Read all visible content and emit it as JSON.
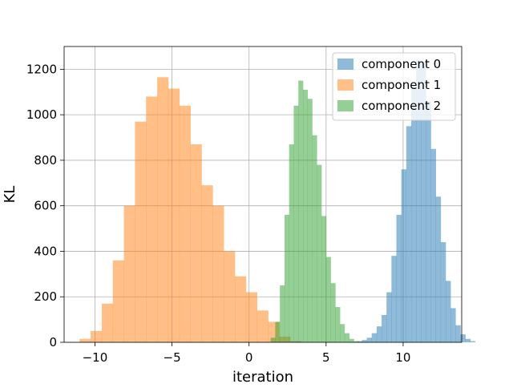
{
  "chart_data": {
    "type": "histogram",
    "xlabel": "iteration",
    "ylabel": "KL",
    "xlim": [
      -12.0,
      13.8
    ],
    "ylim": [
      0,
      1300
    ],
    "x_ticks": [
      -10,
      -5,
      0,
      5,
      10
    ],
    "x_tick_labels": [
      "−10",
      "−5",
      "0",
      "5",
      "10"
    ],
    "y_ticks": [
      0,
      200,
      400,
      600,
      800,
      1000,
      1200
    ],
    "y_tick_labels": [
      "0",
      "200",
      "400",
      "600",
      "800",
      "1000",
      "1200"
    ],
    "grid": true,
    "legend_position": "top-right",
    "series": [
      {
        "name": "component 0",
        "color": "#1f77b4",
        "opacity": 0.5,
        "bin_start": 7.0,
        "bin_width": 0.32,
        "counts": [
          5,
          10,
          20,
          40,
          70,
          120,
          220,
          380,
          560,
          760,
          950,
          1130,
          1240,
          1230,
          1060,
          850,
          640,
          440,
          270,
          150,
          75,
          35,
          15,
          5
        ]
      },
      {
        "name": "component 1",
        "color": "#ff7f0e",
        "opacity": 0.5,
        "bin_start": -11.0,
        "bin_width": 0.72,
        "counts": [
          15,
          50,
          170,
          360,
          600,
          970,
          1080,
          1165,
          1115,
          1040,
          870,
          690,
          600,
          400,
          290,
          220,
          140,
          90,
          25,
          5
        ]
      },
      {
        "name": "component 2",
        "color": "#2ca02c",
        "opacity": 0.5,
        "bin_start": 1.4,
        "bin_width": 0.3,
        "counts": [
          20,
          90,
          250,
          560,
          870,
          1040,
          1150,
          1110,
          1070,
          910,
          780,
          555,
          375,
          260,
          155,
          80,
          40,
          15,
          5
        ]
      }
    ]
  }
}
